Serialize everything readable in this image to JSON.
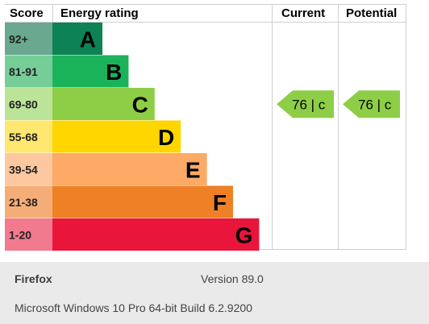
{
  "chart_data": {
    "type": "bar",
    "headers": {
      "score": "Score",
      "rating": "Energy rating",
      "current": "Current",
      "potential": "Potential"
    },
    "bands": [
      {
        "score": "92+",
        "letter": "A",
        "color": "#0c8255",
        "score_bg": "#6aa890"
      },
      {
        "score": "81-91",
        "letter": "B",
        "color": "#1bb35a",
        "score_bg": "#76cd98"
      },
      {
        "score": "69-80",
        "letter": "C",
        "color": "#8dce46",
        "score_bg": "#bce498"
      },
      {
        "score": "55-68",
        "letter": "D",
        "color": "#ffd600",
        "score_bg": "#ffe770"
      },
      {
        "score": "39-54",
        "letter": "E",
        "color": "#fcaa65",
        "score_bg": "#fdc8a0"
      },
      {
        "score": "21-38",
        "letter": "F",
        "color": "#ef8025",
        "score_bg": "#f5ad77"
      },
      {
        "score": "1-20",
        "letter": "G",
        "color": "#e9153b",
        "score_bg": "#f27a8e"
      }
    ],
    "current": {
      "value": 76,
      "letter": "c",
      "band": "C",
      "label": "76 |  c"
    },
    "potential": {
      "value": 76,
      "letter": "c",
      "band": "C",
      "label": "76 |  c"
    }
  },
  "footer": {
    "browser": "Firefox",
    "version": "Version 89.0",
    "os": "Microsoft Windows 10 Pro 64-bit Build 6.2.9200"
  }
}
